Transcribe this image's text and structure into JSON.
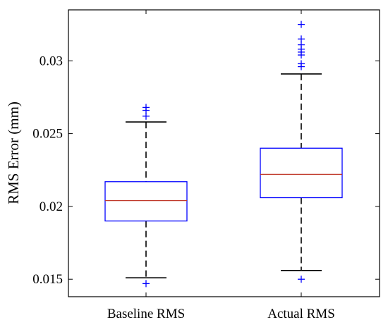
{
  "chart_data": {
    "type": "boxplot",
    "title": "",
    "xlabel": "",
    "ylabel": "RMS Error (mm)",
    "ylim": [
      0.0138,
      0.0335
    ],
    "yticks": [
      "0.015",
      "0.02",
      "0.025",
      "0.03"
    ],
    "ytick_values": [
      0.015,
      0.02,
      0.025,
      0.03
    ],
    "categories": [
      "Baseline RMS",
      "Actual RMS"
    ],
    "boxes": [
      {
        "label": "Baseline RMS",
        "whisker_low": 0.0151,
        "q1": 0.019,
        "median": 0.0204,
        "q3": 0.0217,
        "whisker_high": 0.0258,
        "outliers": [
          0.0147,
          0.0262,
          0.0266,
          0.0268
        ]
      },
      {
        "label": "Actual RMS",
        "whisker_low": 0.0156,
        "q1": 0.0206,
        "median": 0.0222,
        "q3": 0.024,
        "whisker_high": 0.0291,
        "outliers": [
          0.015,
          0.0296,
          0.0298,
          0.0304,
          0.0306,
          0.0308,
          0.0311,
          0.0315,
          0.0325
        ]
      }
    ],
    "colors": {
      "box": "#0000ff",
      "median": "#c0392b",
      "whisker": "#000000",
      "outlier": "#0000ff"
    },
    "grid": false
  }
}
